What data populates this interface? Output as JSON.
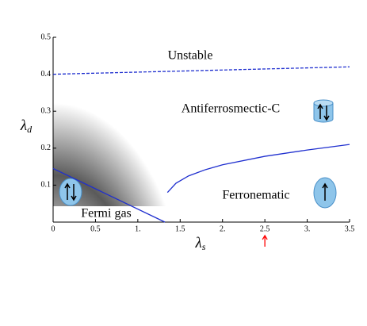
{
  "chart_data": {
    "type": "line",
    "xlabel": {
      "symbol": "λ",
      "sub": "s"
    },
    "ylabel": {
      "symbol": "λ",
      "sub": "d"
    },
    "annotations": [
      "Unstable",
      "Antiferrosmectic-C",
      "Fermi gas",
      "Ferronematic"
    ],
    "xlim": [
      0,
      3.5
    ],
    "ylim": [
      0,
      0.5
    ],
    "xticks": [
      0,
      0.5,
      {
        "value": 1,
        "label": "1."
      },
      1.5,
      {
        "value": 2,
        "label": "2."
      },
      2.5,
      {
        "value": 3,
        "label": "3."
      },
      3.5
    ],
    "yticks": [
      0.1,
      0.2,
      0.3,
      0.4,
      0.5
    ],
    "arrow_x": 2.5,
    "arrow_color": "#ff0000",
    "series": [
      {
        "color": "#1f2fcf",
        "dashed": true,
        "x": [
          0,
          3.5
        ],
        "values": [
          0.4,
          0.42
        ]
      },
      {
        "color": "#1f2fcf",
        "dashed": false,
        "x": [
          0,
          1.32
        ],
        "values": [
          0.145,
          0
        ]
      },
      {
        "color": "#1f2fcf",
        "dashed": false,
        "x": [
          1.35,
          1.45,
          1.6,
          1.8,
          2.0,
          2.5,
          3.0,
          3.5
        ],
        "values": [
          0.08,
          0.105,
          0.125,
          0.142,
          0.155,
          0.178,
          0.195,
          0.21
        ]
      }
    ]
  }
}
